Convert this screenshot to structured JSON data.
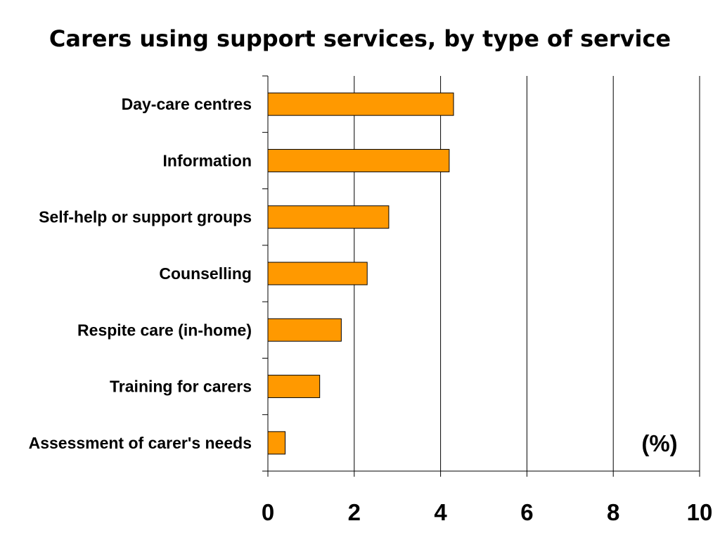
{
  "chart_data": {
    "type": "bar",
    "orientation": "horizontal",
    "title": "Carers using support services, by type of service",
    "categories": [
      "Day-care centres",
      "Information",
      "Self-help or support groups",
      "Counselling",
      "Respite care (in-home)",
      "Training for carers",
      "Assessment of carer's needs"
    ],
    "values": [
      4.3,
      4.2,
      2.8,
      2.3,
      1.7,
      1.2,
      0.4
    ],
    "xlabel": "",
    "ylabel": "",
    "unit_label": "(%)",
    "xlim": [
      0,
      10
    ],
    "xticks": [
      "0",
      "2",
      "4",
      "6",
      "8",
      "10"
    ],
    "grid": "vertical",
    "bar_color": "#FF9900",
    "bar_outline_color": "#000000"
  }
}
